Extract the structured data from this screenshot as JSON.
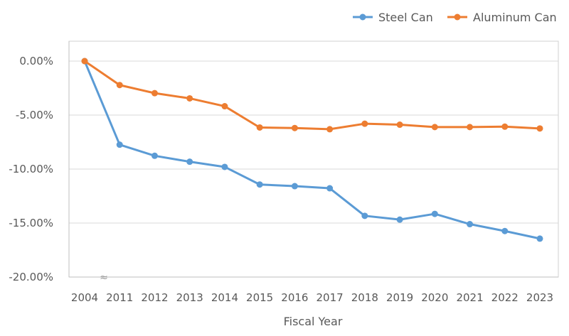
{
  "chart_data": {
    "type": "line",
    "title": "",
    "xlabel": "Fiscal Year",
    "ylabel": "",
    "categories": [
      "2004",
      "2011",
      "2012",
      "2013",
      "2014",
      "2015",
      "2016",
      "2017",
      "2018",
      "2019",
      "2020",
      "2021",
      "2022",
      "2023"
    ],
    "ylim": [
      -20,
      0
    ],
    "yticks": [
      "0.00%",
      "-5.00%",
      "-10.00%",
      "-15.00%",
      "-20.00%"
    ],
    "ytick_values": [
      0,
      -5,
      -10,
      -15,
      -20
    ],
    "grid": true,
    "legend_position": "top-right",
    "axis_break_marker": "≈",
    "series": [
      {
        "name": "Steel Can",
        "color": "#5b9bd5",
        "values": [
          0,
          -7.74,
          -8.77,
          -9.32,
          -9.8,
          -11.43,
          -11.58,
          -11.78,
          -14.33,
          -14.68,
          -14.15,
          -15.1,
          -15.74,
          -16.44
        ]
      },
      {
        "name": "Aluminum Can",
        "color": "#ed7d31",
        "values": [
          0,
          -2.22,
          -2.97,
          -3.45,
          -4.18,
          -6.15,
          -6.2,
          -6.31,
          -5.8,
          -5.89,
          -6.11,
          -6.11,
          -6.07,
          -6.24
        ]
      }
    ]
  }
}
